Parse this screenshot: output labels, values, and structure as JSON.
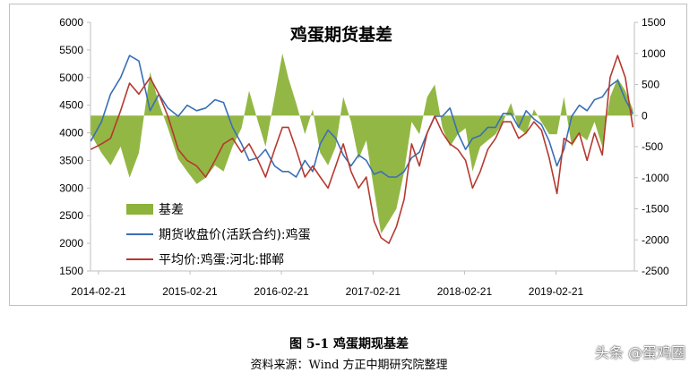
{
  "chart_data": {
    "type": "line",
    "title": "鸡蛋期货基差",
    "x_ticks": [
      "2014-02-21",
      "2015-02-21",
      "2016-02-21",
      "2017-02-21",
      "2018-02-21",
      "2019-02-21"
    ],
    "x_range": [
      "2014-01-20",
      "2019-12-31"
    ],
    "y_left": {
      "ticks": [
        1500,
        2000,
        2500,
        3000,
        3500,
        4000,
        4500,
        5000,
        5500,
        6000
      ],
      "range": [
        1500,
        6000
      ]
    },
    "y_right": {
      "ticks": [
        -2500,
        -2000,
        -1500,
        -1000,
        -500,
        0,
        500,
        1000,
        1500
      ],
      "range": [
        -2500,
        1500
      ]
    },
    "legend_position": "bottom-left",
    "series": [
      {
        "name": "基差",
        "type": "area",
        "axis": "right",
        "color": "#8db33a",
        "x": [
          "2014-01-21",
          "2014-03-05",
          "2014-04-10",
          "2014-05-20",
          "2014-06-25",
          "2014-08-01",
          "2014-09-15",
          "2014-10-20",
          "2014-11-25",
          "2015-01-05",
          "2015-02-10",
          "2015-03-20",
          "2015-04-25",
          "2015-06-01",
          "2015-07-05",
          "2015-08-10",
          "2015-09-15",
          "2015-10-15",
          "2015-11-20",
          "2015-12-20",
          "2016-01-25",
          "2016-02-25",
          "2016-03-20",
          "2016-04-20",
          "2016-05-25",
          "2016-06-25",
          "2016-07-25",
          "2016-08-25",
          "2016-09-25",
          "2016-10-25",
          "2016-11-25",
          "2016-12-25",
          "2017-01-25",
          "2017-02-25",
          "2017-03-25",
          "2017-04-25",
          "2017-05-25",
          "2017-06-25",
          "2017-07-25",
          "2017-08-25",
          "2017-09-25",
          "2017-10-25",
          "2017-11-25",
          "2017-12-25",
          "2018-01-25",
          "2018-02-25",
          "2018-03-25",
          "2018-04-25",
          "2018-05-25",
          "2018-06-25",
          "2018-07-25",
          "2018-08-25",
          "2018-09-25",
          "2018-10-25",
          "2018-11-25",
          "2018-12-25",
          "2019-01-25",
          "2019-02-25",
          "2019-03-25",
          "2019-04-25",
          "2019-05-25",
          "2019-06-25",
          "2019-07-25",
          "2019-08-25",
          "2019-09-25",
          "2019-10-25",
          "2019-11-25",
          "2019-12-25"
        ],
        "values": [
          -300,
          -600,
          -800,
          -500,
          -1000,
          -600,
          700,
          200,
          -200,
          -700,
          -900,
          -1100,
          -1000,
          -800,
          -900,
          -500,
          -200,
          400,
          -100,
          -500,
          300,
          1000,
          600,
          200,
          -300,
          100,
          -600,
          -800,
          -500,
          300,
          -100,
          -700,
          -400,
          -1200,
          -1900,
          -1700,
          -1500,
          -900,
          -100,
          -300,
          300,
          500,
          -200,
          -500,
          -300,
          -200,
          -900,
          -500,
          -400,
          -300,
          -100,
          200,
          -200,
          -300,
          100,
          -100,
          -300,
          -300,
          300,
          -500,
          -300,
          -400,
          -100,
          -500,
          300,
          600,
          400,
          100
        ]
      },
      {
        "name": "期货收盘价(活跃合约):鸡蛋",
        "type": "line",
        "axis": "left",
        "color": "#3a6fb5",
        "x": [
          "2014-01-21",
          "2014-03-05",
          "2014-04-10",
          "2014-05-20",
          "2014-06-25",
          "2014-08-01",
          "2014-09-15",
          "2014-10-20",
          "2014-11-25",
          "2015-01-05",
          "2015-02-10",
          "2015-03-20",
          "2015-04-25",
          "2015-06-01",
          "2015-07-05",
          "2015-08-10",
          "2015-09-15",
          "2015-10-15",
          "2015-11-20",
          "2015-12-20",
          "2016-01-25",
          "2016-02-25",
          "2016-03-20",
          "2016-04-20",
          "2016-05-25",
          "2016-06-25",
          "2016-07-25",
          "2016-08-25",
          "2016-09-25",
          "2016-10-25",
          "2016-11-25",
          "2016-12-25",
          "2017-01-25",
          "2017-02-25",
          "2017-03-25",
          "2017-04-25",
          "2017-05-25",
          "2017-06-25",
          "2017-07-25",
          "2017-08-25",
          "2017-09-25",
          "2017-10-25",
          "2017-11-25",
          "2017-12-25",
          "2018-01-25",
          "2018-02-25",
          "2018-03-25",
          "2018-04-25",
          "2018-05-25",
          "2018-06-25",
          "2018-07-25",
          "2018-08-25",
          "2018-09-25",
          "2018-10-25",
          "2018-11-25",
          "2018-12-25",
          "2019-01-25",
          "2019-02-25",
          "2019-03-25",
          "2019-04-25",
          "2019-05-25",
          "2019-06-25",
          "2019-07-25",
          "2019-08-25",
          "2019-09-25",
          "2019-10-25",
          "2019-11-25",
          "2019-12-25"
        ],
        "values": [
          3850,
          4200,
          4700,
          5000,
          5400,
          5300,
          4400,
          4700,
          4450,
          4300,
          4500,
          4400,
          4450,
          4600,
          4550,
          4100,
          3800,
          3500,
          3550,
          3700,
          3400,
          3300,
          3300,
          3200,
          3500,
          3300,
          3800,
          4050,
          3900,
          3600,
          3400,
          3600,
          3500,
          3250,
          3300,
          3200,
          3200,
          3300,
          3550,
          3650,
          4000,
          4300,
          4300,
          4450,
          4000,
          3700,
          3900,
          3950,
          4100,
          4100,
          4350,
          4350,
          4100,
          4400,
          4250,
          4150,
          3850,
          3400,
          3700,
          4300,
          4500,
          4400,
          4600,
          4650,
          4850,
          4950,
          4600,
          4350
        ]
      },
      {
        "name": "平均价:鸡蛋:河北:邯郸",
        "type": "line",
        "axis": "left",
        "color": "#b5392f",
        "x": [
          "2014-01-21",
          "2014-03-05",
          "2014-04-10",
          "2014-05-20",
          "2014-06-25",
          "2014-08-01",
          "2014-09-15",
          "2014-10-20",
          "2014-11-25",
          "2015-01-05",
          "2015-02-10",
          "2015-03-20",
          "2015-04-25",
          "2015-06-01",
          "2015-07-05",
          "2015-08-10",
          "2015-09-15",
          "2015-10-15",
          "2015-11-20",
          "2015-12-20",
          "2016-01-25",
          "2016-02-25",
          "2016-03-20",
          "2016-04-20",
          "2016-05-25",
          "2016-06-25",
          "2016-07-25",
          "2016-08-25",
          "2016-09-25",
          "2016-10-25",
          "2016-11-25",
          "2016-12-25",
          "2017-01-25",
          "2017-02-25",
          "2017-03-25",
          "2017-04-25",
          "2017-05-25",
          "2017-06-25",
          "2017-07-25",
          "2017-08-25",
          "2017-09-25",
          "2017-10-25",
          "2017-11-25",
          "2017-12-25",
          "2018-01-25",
          "2018-02-25",
          "2018-03-25",
          "2018-04-25",
          "2018-05-25",
          "2018-06-25",
          "2018-07-25",
          "2018-08-25",
          "2018-09-25",
          "2018-10-25",
          "2018-11-25",
          "2018-12-25",
          "2019-01-25",
          "2019-02-25",
          "2019-03-25",
          "2019-04-25",
          "2019-05-25",
          "2019-06-25",
          "2019-07-25",
          "2019-08-25",
          "2019-09-25",
          "2019-10-25",
          "2019-11-25",
          "2019-12-25"
        ],
        "values": [
          3700,
          3800,
          3900,
          4400,
          4900,
          4700,
          5000,
          4700,
          4300,
          3700,
          3500,
          3400,
          3200,
          3500,
          3800,
          3900,
          3650,
          3800,
          3500,
          3200,
          3700,
          4100,
          4100,
          3700,
          3200,
          3400,
          3200,
          3000,
          3400,
          3800,
          3300,
          3000,
          3200,
          2400,
          2100,
          2000,
          2300,
          2800,
          3800,
          3400,
          4000,
          4300,
          4000,
          3800,
          3700,
          3500,
          3000,
          3300,
          3700,
          3900,
          4200,
          4200,
          3900,
          4000,
          4200,
          4050,
          3550,
          2900,
          3900,
          3800,
          4000,
          3500,
          4000,
          3600,
          5000,
          5400,
          5000,
          4100
        ]
      }
    ]
  },
  "caption": {
    "figure_title": "图 5-1  鸡蛋期现基差",
    "source": "资料来源：Wind   方正中期研究院整理"
  },
  "watermark": "头条 @蛋鸡圈"
}
